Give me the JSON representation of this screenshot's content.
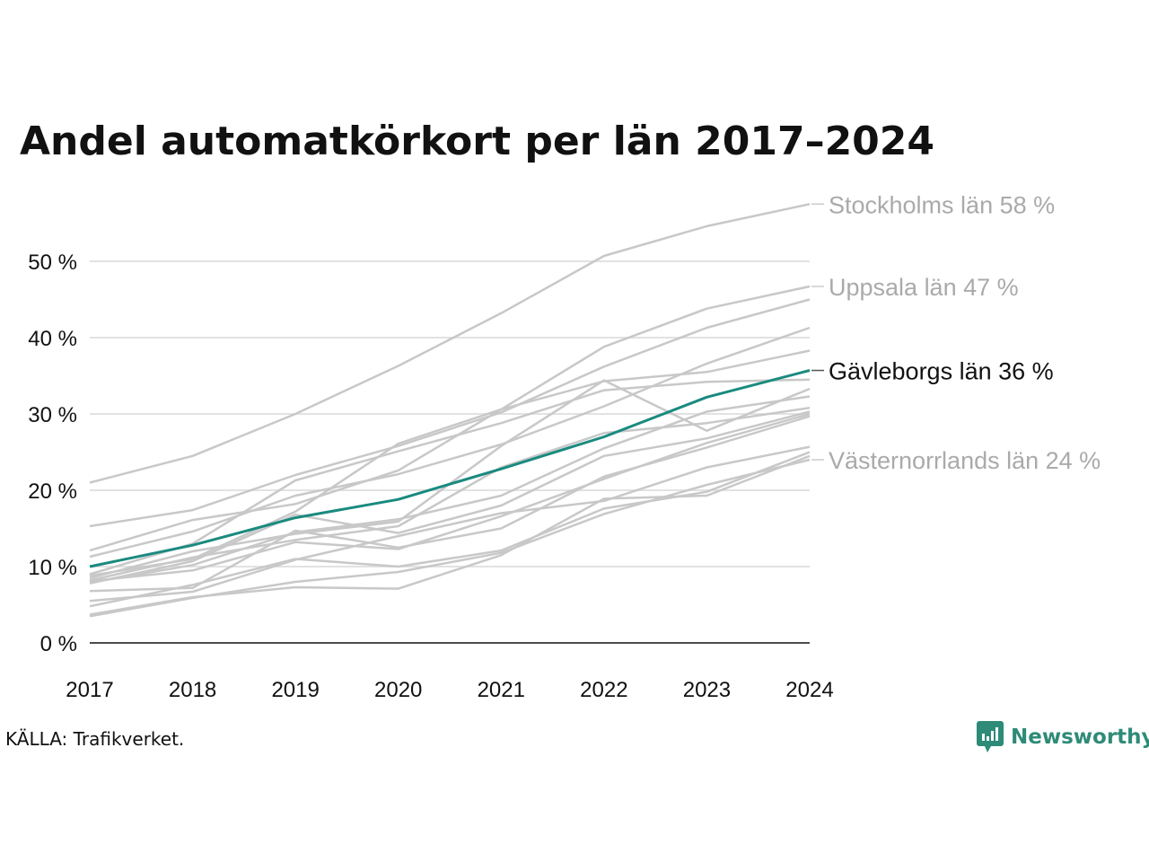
{
  "title": "Andel automatkörkort per län 2017–2024",
  "source": "KÄLLA: Trafikverket.",
  "brand": {
    "name": "Newsworthy",
    "icon": "newsworthy-logo-icon"
  },
  "colors": {
    "background_lines": "#c8c8c8",
    "highlight": "#1a8a7f",
    "grid": "#e2e2e2",
    "axis": "#111111",
    "label_gray": "#aaaaaa"
  },
  "chart_data": {
    "type": "line",
    "title": "Andel automatkörkort per län 2017–2024",
    "x": [
      2017,
      2018,
      2019,
      2020,
      2021,
      2022,
      2023,
      2024
    ],
    "x_tick_labels": [
      "2017",
      "2018",
      "2019",
      "2020",
      "2021",
      "2022",
      "2023",
      "2024"
    ],
    "y_ticks": [
      0,
      10,
      20,
      30,
      40,
      50
    ],
    "y_tick_labels": [
      "0 %",
      "10 %",
      "20 %",
      "30 %",
      "40 %",
      "50 %"
    ],
    "ylim": [
      0,
      58
    ],
    "grid": "horizontal",
    "labeled_series": [
      {
        "name": "Stockholms län",
        "label": "Stockholms län 58 %",
        "highlight": false,
        "values": [
          21.0,
          24.5,
          30.0,
          36.3,
          43.2,
          50.7,
          54.6,
          57.5
        ]
      },
      {
        "name": "Uppsala län",
        "label": "Uppsala län 47 %",
        "highlight": false,
        "values": [
          12.1,
          16.1,
          18.2,
          22.6,
          30.6,
          38.8,
          43.8,
          46.7
        ]
      },
      {
        "name": "Gävleborgs län",
        "label": "Gävleborgs län 36 %",
        "highlight": true,
        "values": [
          10.0,
          12.8,
          16.4,
          18.8,
          22.8,
          27.0,
          32.2,
          35.7
        ]
      },
      {
        "name": "Västernorrlands län",
        "label": "Västernorrlands län 24 %",
        "highlight": false,
        "values": [
          3.5,
          5.9,
          8.0,
          9.3,
          11.8,
          16.9,
          20.7,
          24.0
        ]
      }
    ],
    "other_series": [
      [
        15.3,
        17.4,
        22.0,
        25.8,
        30.2,
        36.2,
        41.3,
        45.0
      ],
      [
        11.3,
        14.6,
        19.3,
        22.1,
        26.0,
        31.0,
        36.6,
        41.3
      ],
      [
        8.8,
        11.0,
        17.2,
        26.1,
        30.6,
        34.3,
        35.5,
        38.3
      ],
      [
        9.0,
        13.0,
        21.3,
        25.1,
        28.8,
        33.1,
        34.2,
        34.5
      ],
      [
        8.5,
        12.0,
        14.3,
        15.9,
        25.8,
        34.4,
        27.8,
        33.3
      ],
      [
        7.9,
        10.2,
        14.5,
        16.2,
        19.3,
        25.5,
        30.3,
        32.3
      ],
      [
        8.2,
        11.2,
        13.5,
        15.3,
        23.0,
        27.5,
        28.8,
        30.8
      ],
      [
        7.8,
        10.7,
        16.8,
        14.4,
        18.0,
        24.5,
        26.8,
        30.3
      ],
      [
        8.1,
        9.5,
        13.2,
        12.3,
        16.6,
        21.5,
        26.2,
        30.0
      ],
      [
        6.8,
        7.2,
        14.7,
        12.5,
        15.0,
        21.8,
        25.6,
        29.7
      ],
      [
        5.5,
        6.7,
        10.9,
        14.0,
        17.0,
        18.6,
        23.0,
        25.7
      ],
      [
        4.8,
        7.6,
        11.0,
        10.0,
        12.1,
        17.6,
        19.8,
        25.0
      ],
      [
        3.7,
        6.0,
        7.3,
        7.1,
        11.5,
        18.9,
        19.3,
        24.5
      ]
    ]
  }
}
